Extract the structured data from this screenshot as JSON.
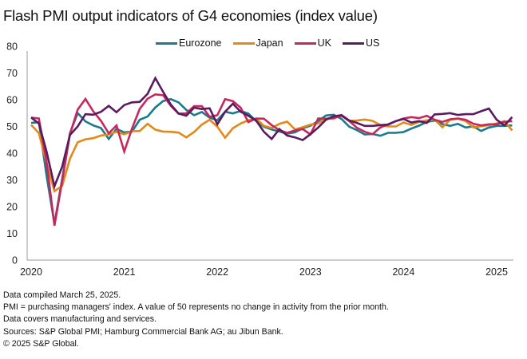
{
  "title": "Flash PMI output indicators of G4 economies (index value)",
  "notes": [
    "Data compiled March 25, 2025.",
    "PMI = purchasing managers' index. A value of 50 represents no change in activity from the prior month.",
    "Data covers manufacturing and services.",
    "Sources: S&P Global PMI; Hamburg Commercial Bank AG; au Jibun Bank.",
    "© 2025 S&P Global."
  ],
  "chart_data": {
    "type": "line",
    "title": "Flash PMI output indicators of G4 economies (index value)",
    "xlabel": "",
    "ylabel": "",
    "ylim": [
      0,
      80
    ],
    "yticks": [
      0,
      10,
      20,
      30,
      40,
      50,
      60,
      70,
      80
    ],
    "xticks": [
      "2020",
      "2021",
      "2022",
      "2023",
      "2024",
      "2025"
    ],
    "x_start": "2020-01",
    "x_end": "2025-03",
    "frequency": "monthly",
    "grid": false,
    "legend_position": "top-center",
    "series": [
      {
        "name": "Eurozone",
        "color": "#1b7b8c",
        "values": [
          51.3,
          51.6,
          31.4,
          13.6,
          30.5,
          47.5,
          55.0,
          51.9,
          50.4,
          49.4,
          45.3,
          49.1,
          47.8,
          48.1,
          52.5,
          53.7,
          57.1,
          59.5,
          60.2,
          59.0,
          56.2,
          54.2,
          55.4,
          53.3,
          52.3,
          55.5,
          54.9,
          55.8,
          54.8,
          52.0,
          49.9,
          48.9,
          48.1,
          47.3,
          47.8,
          49.3,
          50.3,
          52.0,
          54.1,
          54.4,
          52.8,
          49.9,
          48.6,
          47.0,
          47.2,
          46.5,
          47.6,
          47.6,
          47.9,
          49.2,
          50.3,
          51.7,
          52.2,
          50.9,
          50.2,
          51.0,
          49.6,
          50.0,
          48.3,
          49.6,
          50.2,
          50.2,
          50.4
        ]
      },
      {
        "name": "Japan",
        "color": "#e3891c",
        "values": [
          50.6,
          47.5,
          36.2,
          25.8,
          27.8,
          37.9,
          44.1,
          45.2,
          45.6,
          46.6,
          47.0,
          48.0,
          47.1,
          48.2,
          48.3,
          51.0,
          48.8,
          48.1,
          48.0,
          47.7,
          45.9,
          47.9,
          50.7,
          52.5,
          49.9,
          45.8,
          49.3,
          51.1,
          52.3,
          53.0,
          50.2,
          49.4,
          51.0,
          51.8,
          48.9,
          49.7,
          50.7,
          51.1,
          52.9,
          52.9,
          54.3,
          52.1,
          52.2,
          52.6,
          52.1,
          50.5,
          50.0,
          50.0,
          51.5,
          50.6,
          51.7,
          52.3,
          52.6,
          49.7,
          52.5,
          52.9,
          52.0,
          49.6,
          50.1,
          50.5,
          51.1,
          52.0,
          48.5
        ]
      },
      {
        "name": "UK",
        "color": "#c7285c",
        "values": [
          53.3,
          53.0,
          36.6,
          12.9,
          29.6,
          47.1,
          56.3,
          60.3,
          55.7,
          52.1,
          47.4,
          50.4,
          40.6,
          49.2,
          56.6,
          60.4,
          62.0,
          61.7,
          57.7,
          54.8,
          54.9,
          57.6,
          57.6,
          53.6,
          54.2,
          60.2,
          59.5,
          57.0,
          51.6,
          53.0,
          52.9,
          50.5,
          48.6,
          47.6,
          48.5,
          49.0,
          47.0,
          53.0,
          52.9,
          53.2,
          54.0,
          52.0,
          49.5,
          48.0,
          47.1,
          49.6,
          50.8,
          52.0,
          53.0,
          53.5,
          53.1,
          54.0,
          52.5,
          51.7,
          52.7,
          53.0,
          52.5,
          51.0,
          50.4,
          50.8,
          50.8,
          51.7,
          52.0
        ]
      },
      {
        "name": "US",
        "color": "#5a1c5f",
        "values": [
          53.3,
          51.1,
          40.5,
          27.6,
          35.0,
          46.8,
          50.0,
          54.6,
          54.4,
          55.5,
          57.7,
          55.3,
          58.0,
          59.0,
          59.2,
          62.2,
          68.1,
          63.0,
          58.2,
          54.8,
          54.0,
          57.0,
          56.5,
          56.8,
          50.8,
          55.5,
          58.5,
          55.5,
          54.0,
          52.2,
          48.0,
          45.3,
          49.0,
          46.6,
          45.9,
          44.9,
          47.1,
          49.6,
          52.5,
          53.8,
          54.2,
          52.2,
          51.3,
          50.2,
          50.2,
          50.5,
          50.7,
          52.0,
          52.8,
          51.5,
          52.0,
          51.3,
          54.5,
          54.7,
          55.0,
          54.3,
          54.6,
          54.6,
          55.7,
          56.7,
          52.5,
          50.4,
          53.5
        ]
      }
    ]
  }
}
